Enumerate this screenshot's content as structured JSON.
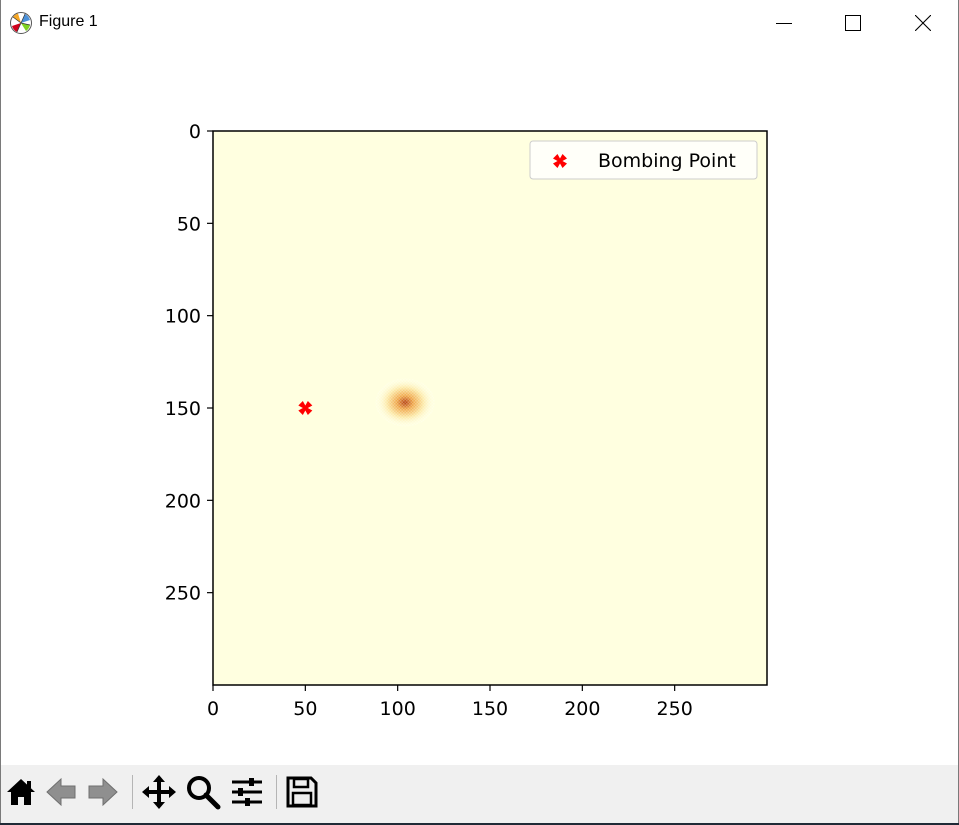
{
  "window": {
    "title": "Figure 1",
    "app_icon": "matplotlib-logo-icon",
    "controls": [
      "minimize-icon",
      "maximize-icon",
      "close-icon"
    ]
  },
  "colors": {
    "heatmap_background": "#ffffe0",
    "hotspot_light": "#fce9a6",
    "hotspot_mid": "#f0a84a",
    "hotspot_dark": "#b5410f",
    "marker": "#ff0000",
    "toolbar_bg": "#f0f0f0"
  },
  "chart_data": {
    "type": "heatmap",
    "title": "",
    "xlabel": "",
    "ylabel": "",
    "xlim": [
      0,
      300
    ],
    "ylim": [
      300,
      0
    ],
    "y_inverted": true,
    "colormap": "YlOrRd",
    "x_ticks": [
      0,
      50,
      100,
      150,
      200,
      250
    ],
    "y_ticks": [
      0,
      50,
      100,
      150,
      200,
      250
    ],
    "hotspot": {
      "x": 104,
      "y": 147,
      "spread": 5
    },
    "grid": false,
    "legend": {
      "placement": "upper right",
      "entries": [
        {
          "label": "Bombing Point",
          "marker": "X"
        }
      ]
    },
    "series": [
      {
        "name": "Bombing Point",
        "type": "scatter",
        "marker": "X",
        "color": "#ff0000",
        "points": [
          {
            "x": 50,
            "y": 150
          }
        ]
      }
    ]
  },
  "toolbar": {
    "buttons": [
      {
        "name": "home-icon",
        "enabled": true
      },
      {
        "name": "back-arrow-icon",
        "enabled": false
      },
      {
        "name": "forward-arrow-icon",
        "enabled": false
      },
      {
        "name": "pan-icon",
        "enabled": true
      },
      {
        "name": "zoom-icon",
        "enabled": true
      },
      {
        "name": "configure-subplots-icon",
        "enabled": true
      },
      {
        "name": "save-icon",
        "enabled": true
      }
    ]
  }
}
